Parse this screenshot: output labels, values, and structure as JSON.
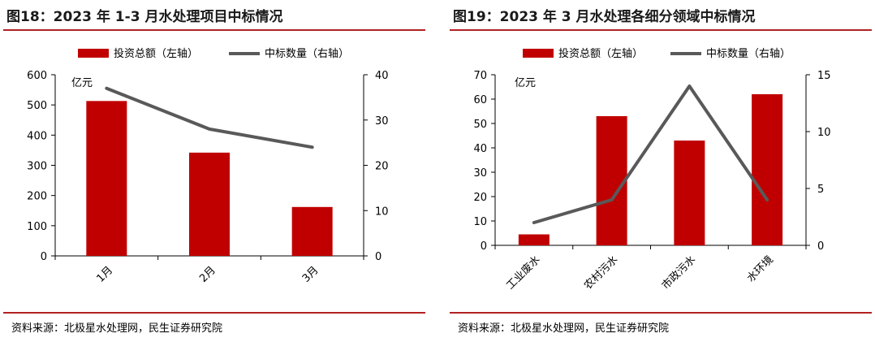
{
  "charts": [
    {
      "title": "图18：2023 年 1-3 月水处理项目中标情况",
      "source": "资料来源：北极星水处理网，民生证券研究院",
      "unit_label": "亿元",
      "legend": {
        "bar": "投资总额（左轴）",
        "line": "中标数量（右轴）"
      }
    },
    {
      "title": "图19：2023 年 3 月水处理各细分领域中标情况",
      "source": "资料来源：北极星水处理网，民生证券研究院",
      "unit_label": "亿元",
      "legend": {
        "bar": "投资总额（左轴）",
        "line": "中标数量（右轴）"
      }
    }
  ],
  "chart_data": [
    {
      "type": "bar",
      "title": "图18：2023 年 1-3 月水处理项目中标情况",
      "categories": [
        "1月",
        "2月",
        "3月"
      ],
      "series": [
        {
          "name": "投资总额（左轴）",
          "type": "bar",
          "axis": "left",
          "values": [
            513,
            342,
            162
          ]
        },
        {
          "name": "中标数量（右轴）",
          "type": "line",
          "axis": "right",
          "values": [
            37,
            28,
            24
          ]
        }
      ],
      "ylim": [
        0,
        600
      ],
      "y_ticks": [
        0,
        100,
        200,
        300,
        400,
        500,
        600
      ],
      "y2lim": [
        0,
        40
      ],
      "y2_ticks": [
        0,
        10,
        20,
        30,
        40
      ],
      "xlabel": "",
      "ylabel": "亿元",
      "legend_position": "top",
      "grid": false,
      "x_label_rotation": -45,
      "colors": {
        "bar": "#c00000",
        "line": "#595959"
      }
    },
    {
      "type": "bar",
      "title": "图19：2023 年 3 月水处理各细分领域中标情况",
      "categories": [
        "工业废水",
        "农村污水",
        "市政污水",
        "水环境"
      ],
      "series": [
        {
          "name": "投资总额（左轴）",
          "type": "bar",
          "axis": "left",
          "values": [
            4.5,
            53,
            43,
            62
          ]
        },
        {
          "name": "中标数量（右轴）",
          "type": "line",
          "axis": "right",
          "values": [
            2,
            4,
            14,
            4
          ]
        }
      ],
      "ylim": [
        0,
        70
      ],
      "y_ticks": [
        0,
        10,
        20,
        30,
        40,
        50,
        60,
        70
      ],
      "y2lim": [
        0,
        15
      ],
      "y2_ticks": [
        0,
        5,
        10,
        15
      ],
      "xlabel": "",
      "ylabel": "亿元",
      "legend_position": "top",
      "grid": false,
      "x_label_rotation": -45,
      "colors": {
        "bar": "#c00000",
        "line": "#595959"
      }
    }
  ]
}
